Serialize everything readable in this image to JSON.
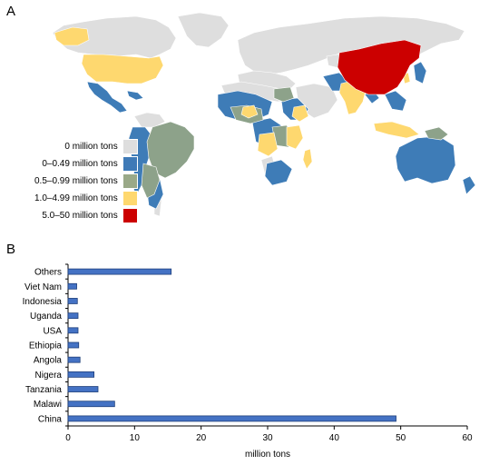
{
  "figure": {
    "panel_a_label": "A",
    "panel_b_label": "B"
  },
  "map": {
    "colors": {
      "ocean": "#ffffff",
      "no_data": "#dedede",
      "c0": "#dedede",
      "c1": "#3e7cb7",
      "c2": "#8da28a",
      "c3": "#fed86f",
      "c4": "#cc0000"
    },
    "legend": [
      {
        "label": "0 million tons",
        "color": "#dedede"
      },
      {
        "label": "0–0.49 million tons",
        "color": "#3f7ab7"
      },
      {
        "label": "0.5–0.99 million tons",
        "color": "#9aa988"
      },
      {
        "label": "1.0–4.99 million tons",
        "color": "#fed86f"
      },
      {
        "label": "5.0–50 million tons",
        "color": "#cc0000"
      }
    ]
  },
  "chart_data": {
    "type": "bar",
    "orientation": "horizontal",
    "categories": [
      "Others",
      "Viet Nam",
      "Indonesia",
      "Uganda",
      "USA",
      "Ethiopia",
      "Angola",
      "Nigera",
      "Tanzania",
      "Malawi",
      "China"
    ],
    "values": [
      15.5,
      1.3,
      1.4,
      1.5,
      1.5,
      1.6,
      1.8,
      3.9,
      4.5,
      7.0,
      49.3
    ],
    "xlabel": "million tons",
    "ylabel": "",
    "xlim": [
      0,
      60
    ],
    "xticks": [
      0,
      10,
      20,
      30,
      40,
      50,
      60
    ],
    "bar_color": "#4472c4",
    "grid": false
  }
}
